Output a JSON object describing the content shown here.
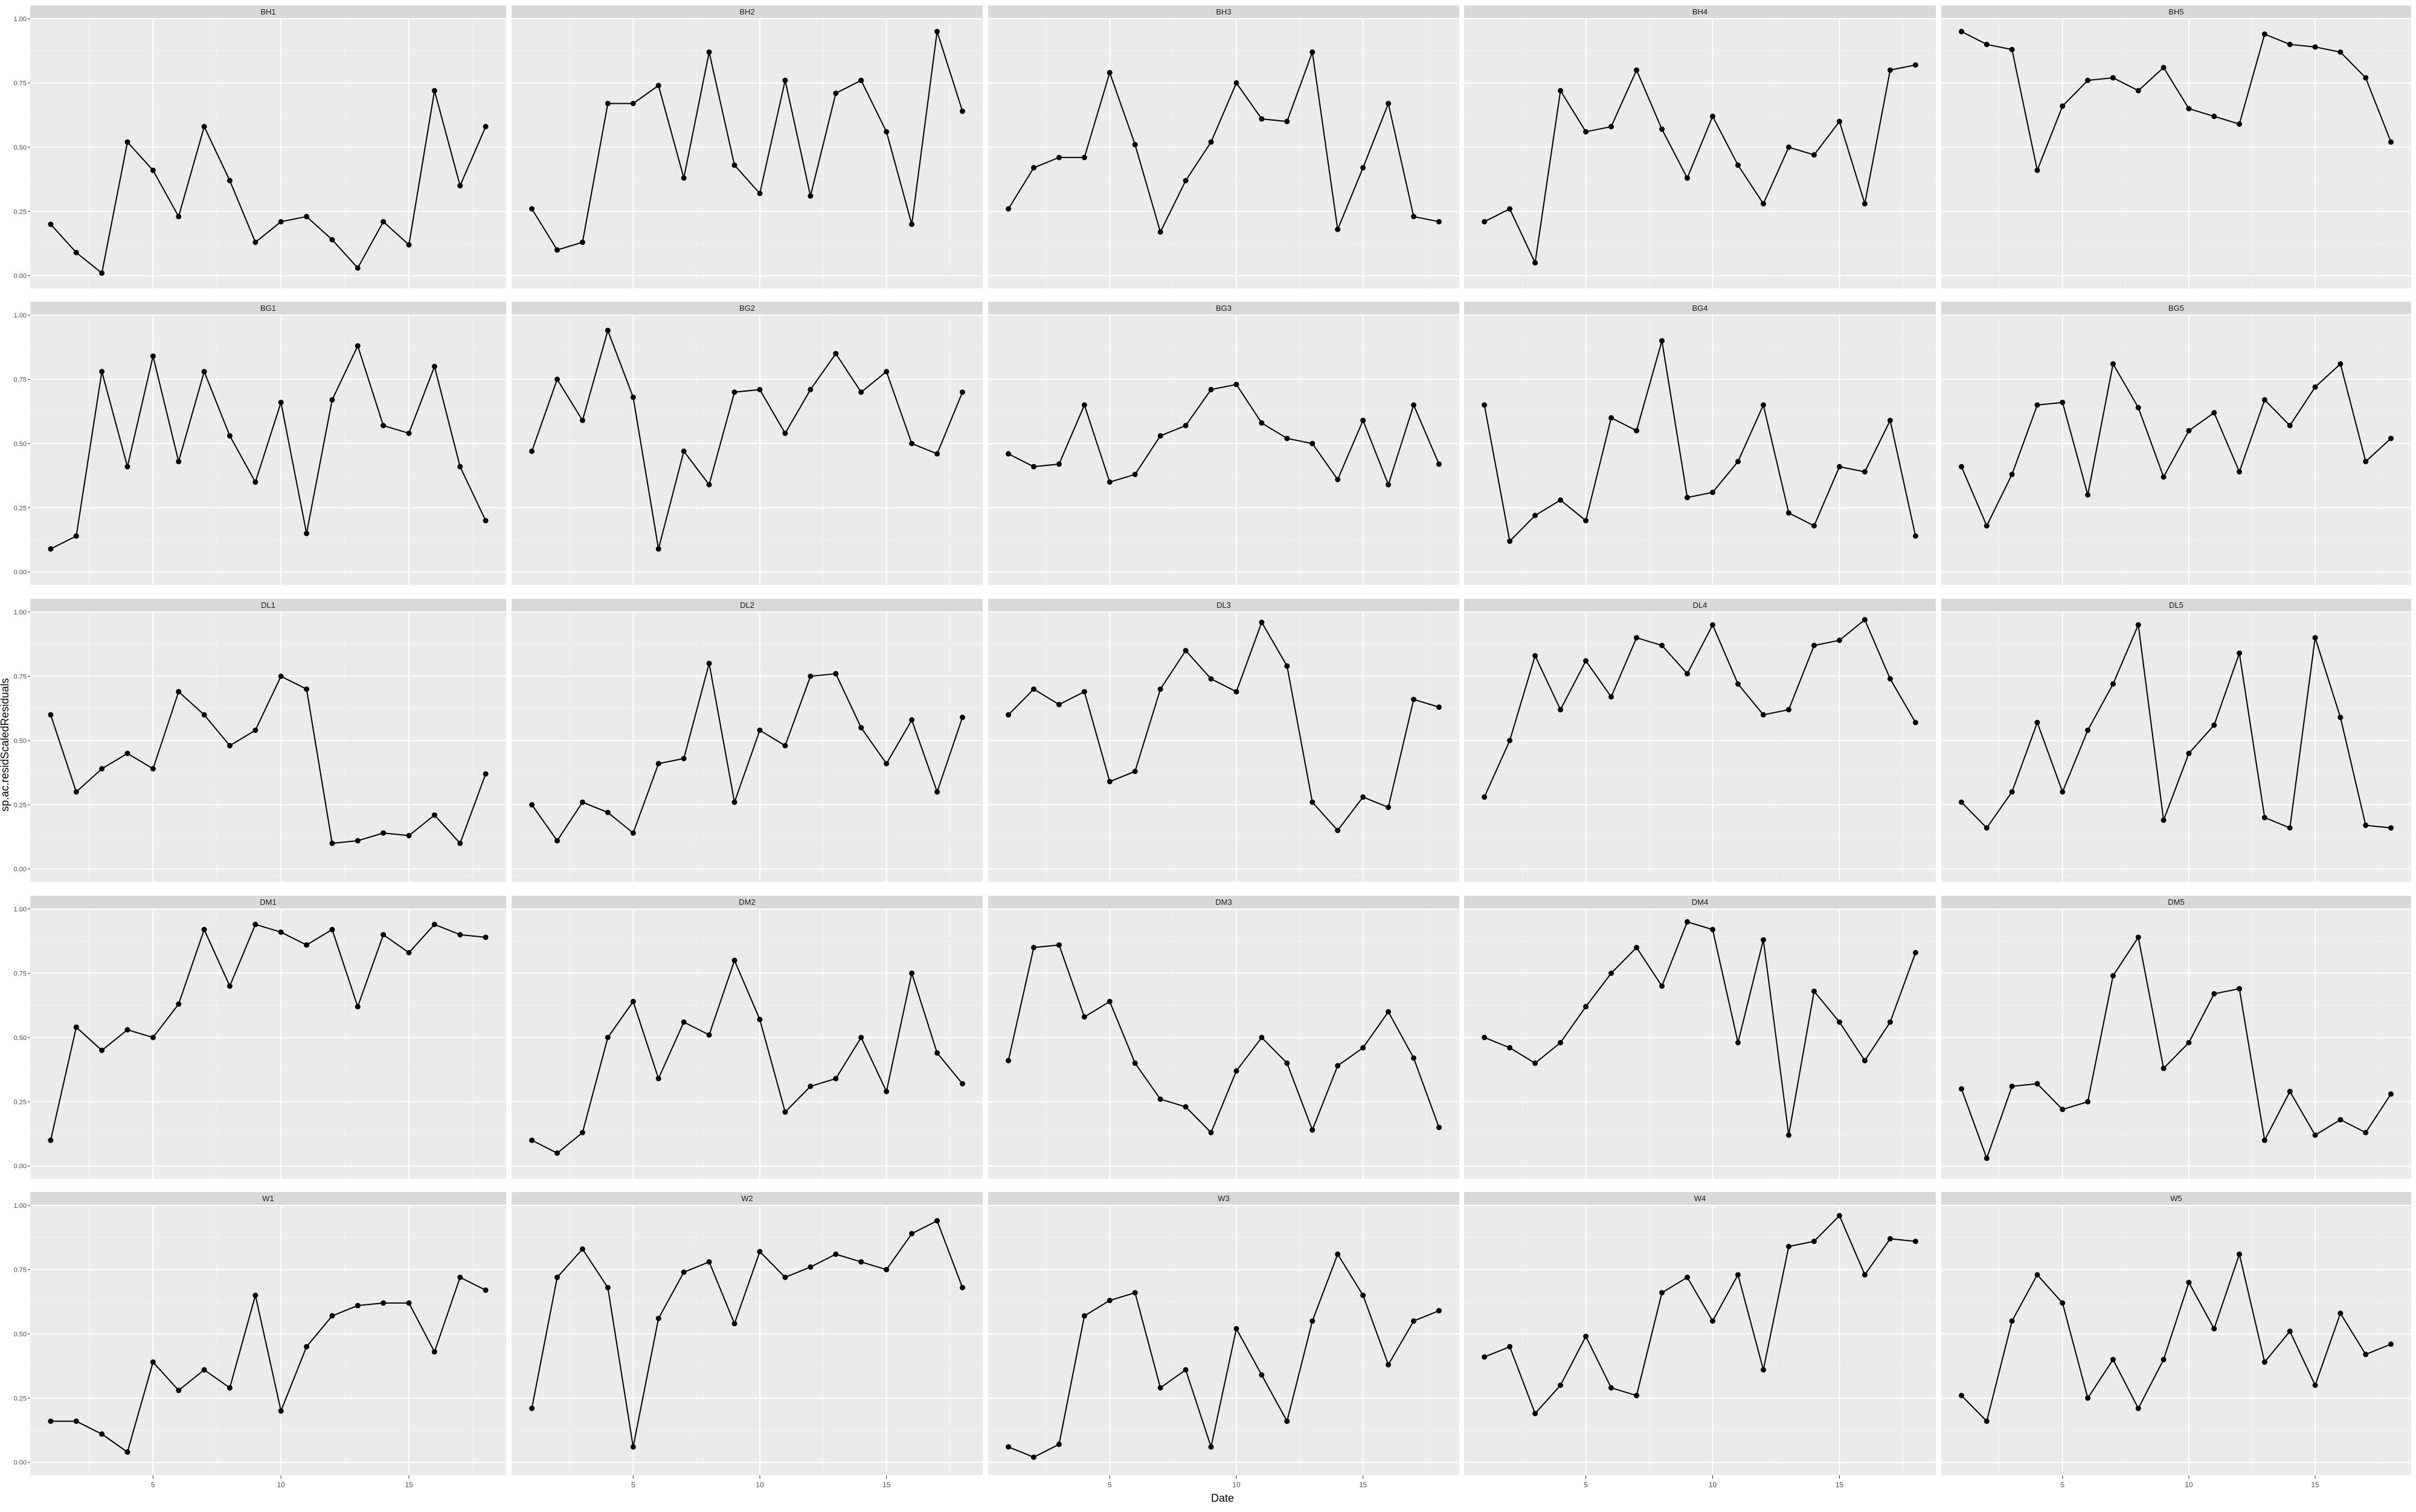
{
  "chart_data": {
    "type": "line",
    "layout": "facet-grid-5x5",
    "xlabel": "Date",
    "ylabel": "sp.ac.residScaledResiduals",
    "x": [
      1,
      2,
      3,
      4,
      5,
      6,
      7,
      8,
      9,
      10,
      11,
      12,
      13,
      14,
      15,
      16,
      17,
      18
    ],
    "xlim": [
      0.2,
      18.8
    ],
    "ylim": [
      -0.05,
      1.0
    ],
    "x_ticks": [
      5,
      10,
      15
    ],
    "x_tick_labels": [
      "5",
      "10",
      "15"
    ],
    "y_ticks": [
      0,
      0.25,
      0.5,
      0.75,
      1.0
    ],
    "y_tick_labels": [
      "0.00",
      "0.25",
      "0.50",
      "0.75",
      "1.00"
    ],
    "grid": true,
    "legend": "none",
    "colors": {
      "panel_background": "#ebebeb",
      "strip_background": "#d9d9d9",
      "grid_major": "#ffffff",
      "grid_minor": "#f4f4f4",
      "line": "#000000",
      "point": "#000000",
      "tick_text": "#4d4d4d",
      "strip_text": "#1a1a1a",
      "axis_title": "#000000"
    },
    "facets": [
      {
        "name": "BH1",
        "values": [
          0.2,
          0.09,
          0.01,
          0.52,
          0.41,
          0.23,
          0.58,
          0.37,
          0.13,
          0.21,
          0.23,
          0.14,
          0.03,
          0.21,
          0.12,
          0.72,
          0.35,
          0.58
        ]
      },
      {
        "name": "BH2",
        "values": [
          0.26,
          0.1,
          0.13,
          0.67,
          0.67,
          0.74,
          0.38,
          0.87,
          0.43,
          0.32,
          0.76,
          0.31,
          0.71,
          0.76,
          0.56,
          0.2,
          0.95,
          0.64
        ]
      },
      {
        "name": "BH3",
        "values": [
          0.26,
          0.42,
          0.46,
          0.46,
          0.79,
          0.51,
          0.17,
          0.37,
          0.52,
          0.75,
          0.61,
          0.6,
          0.87,
          0.18,
          0.42,
          0.67,
          0.23,
          0.21
        ]
      },
      {
        "name": "BH4",
        "values": [
          0.21,
          0.26,
          0.05,
          0.72,
          0.56,
          0.58,
          0.8,
          0.57,
          0.38,
          0.62,
          0.43,
          0.28,
          0.5,
          0.47,
          0.6,
          0.28,
          0.8,
          0.82
        ]
      },
      {
        "name": "BH5",
        "values": [
          0.95,
          0.9,
          0.88,
          0.41,
          0.66,
          0.76,
          0.77,
          0.72,
          0.81,
          0.65,
          0.62,
          0.59,
          0.94,
          0.9,
          0.89,
          0.87,
          0.77,
          0.52
        ]
      },
      {
        "name": "BG1",
        "values": [
          0.09,
          0.14,
          0.78,
          0.41,
          0.84,
          0.43,
          0.78,
          0.53,
          0.35,
          0.66,
          0.15,
          0.67,
          0.88,
          0.57,
          0.54,
          0.8,
          0.41,
          0.2
        ]
      },
      {
        "name": "BG2",
        "values": [
          0.47,
          0.75,
          0.59,
          0.94,
          0.68,
          0.09,
          0.47,
          0.34,
          0.7,
          0.71,
          0.54,
          0.71,
          0.85,
          0.7,
          0.78,
          0.5,
          0.46,
          0.7
        ]
      },
      {
        "name": "BG3",
        "values": [
          0.46,
          0.41,
          0.42,
          0.65,
          0.35,
          0.38,
          0.53,
          0.57,
          0.71,
          0.73,
          0.58,
          0.52,
          0.5,
          0.36,
          0.59,
          0.34,
          0.65,
          0.42
        ]
      },
      {
        "name": "BG4",
        "values": [
          0.65,
          0.12,
          0.22,
          0.28,
          0.2,
          0.6,
          0.55,
          0.9,
          0.29,
          0.31,
          0.43,
          0.65,
          0.23,
          0.18,
          0.41,
          0.39,
          0.59,
          0.14
        ]
      },
      {
        "name": "BG5",
        "values": [
          0.41,
          0.18,
          0.38,
          0.65,
          0.66,
          0.3,
          0.81,
          0.64,
          0.37,
          0.55,
          0.62,
          0.39,
          0.67,
          0.57,
          0.72,
          0.81,
          0.43,
          0.52
        ]
      },
      {
        "name": "DL1",
        "values": [
          0.6,
          0.3,
          0.39,
          0.45,
          0.39,
          0.69,
          0.6,
          0.48,
          0.54,
          0.75,
          0.7,
          0.1,
          0.11,
          0.14,
          0.13,
          0.21,
          0.1,
          0.37
        ]
      },
      {
        "name": "DL2",
        "values": [
          0.25,
          0.11,
          0.26,
          0.22,
          0.14,
          0.41,
          0.43,
          0.8,
          0.26,
          0.54,
          0.48,
          0.75,
          0.76,
          0.55,
          0.41,
          0.58,
          0.3,
          0.59
        ]
      },
      {
        "name": "DL3",
        "values": [
          0.6,
          0.7,
          0.64,
          0.69,
          0.34,
          0.38,
          0.7,
          0.85,
          0.74,
          0.69,
          0.96,
          0.79,
          0.26,
          0.15,
          0.28,
          0.24,
          0.66,
          0.63
        ]
      },
      {
        "name": "DL4",
        "values": [
          0.28,
          0.5,
          0.83,
          0.62,
          0.81,
          0.67,
          0.9,
          0.87,
          0.76,
          0.95,
          0.72,
          0.6,
          0.62,
          0.87,
          0.89,
          0.97,
          0.74,
          0.57
        ]
      },
      {
        "name": "DL5",
        "values": [
          0.26,
          0.16,
          0.3,
          0.57,
          0.3,
          0.54,
          0.72,
          0.95,
          0.19,
          0.45,
          0.56,
          0.84,
          0.2,
          0.16,
          0.9,
          0.59,
          0.17,
          0.16
        ]
      },
      {
        "name": "DM1",
        "values": [
          0.1,
          0.54,
          0.45,
          0.53,
          0.5,
          0.63,
          0.92,
          0.7,
          0.94,
          0.91,
          0.86,
          0.92,
          0.62,
          0.9,
          0.83,
          0.94,
          0.9,
          0.89
        ]
      },
      {
        "name": "DM2",
        "values": [
          0.1,
          0.05,
          0.13,
          0.5,
          0.64,
          0.34,
          0.56,
          0.51,
          0.8,
          0.57,
          0.21,
          0.31,
          0.34,
          0.5,
          0.29,
          0.75,
          0.44,
          0.32
        ]
      },
      {
        "name": "DM3",
        "values": [
          0.41,
          0.85,
          0.86,
          0.58,
          0.64,
          0.4,
          0.26,
          0.23,
          0.13,
          0.37,
          0.5,
          0.4,
          0.14,
          0.39,
          0.46,
          0.6,
          0.42,
          0.15
        ]
      },
      {
        "name": "DM4",
        "values": [
          0.5,
          0.46,
          0.4,
          0.48,
          0.62,
          0.75,
          0.85,
          0.7,
          0.95,
          0.92,
          0.48,
          0.88,
          0.12,
          0.68,
          0.56,
          0.41,
          0.56,
          0.83
        ]
      },
      {
        "name": "DM5",
        "values": [
          0.3,
          0.03,
          0.31,
          0.32,
          0.22,
          0.25,
          0.74,
          0.89,
          0.38,
          0.48,
          0.67,
          0.69,
          0.1,
          0.29,
          0.12,
          0.18,
          0.13,
          0.28
        ]
      },
      {
        "name": "W1",
        "values": [
          0.16,
          0.16,
          0.11,
          0.04,
          0.39,
          0.28,
          0.36,
          0.29,
          0.65,
          0.2,
          0.45,
          0.57,
          0.61,
          0.62,
          0.62,
          0.43,
          0.72,
          0.67
        ]
      },
      {
        "name": "W2",
        "values": [
          0.21,
          0.72,
          0.83,
          0.68,
          0.06,
          0.56,
          0.74,
          0.78,
          0.54,
          0.82,
          0.72,
          0.76,
          0.81,
          0.78,
          0.75,
          0.89,
          0.94,
          0.68
        ]
      },
      {
        "name": "W3",
        "values": [
          0.06,
          0.02,
          0.07,
          0.57,
          0.63,
          0.66,
          0.29,
          0.36,
          0.06,
          0.52,
          0.34,
          0.16,
          0.55,
          0.81,
          0.65,
          0.38,
          0.55,
          0.59
        ]
      },
      {
        "name": "W4",
        "values": [
          0.41,
          0.45,
          0.19,
          0.3,
          0.49,
          0.29,
          0.26,
          0.66,
          0.72,
          0.55,
          0.73,
          0.36,
          0.84,
          0.86,
          0.96,
          0.73,
          0.87,
          0.86
        ]
      },
      {
        "name": "W5",
        "values": [
          0.26,
          0.16,
          0.55,
          0.73,
          0.62,
          0.25,
          0.4,
          0.21,
          0.4,
          0.7,
          0.52,
          0.81,
          0.39,
          0.51,
          0.3,
          0.58,
          0.42,
          0.46
        ]
      }
    ]
  }
}
